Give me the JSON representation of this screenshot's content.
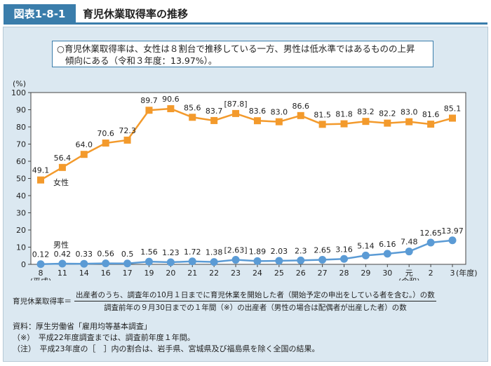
{
  "header": {
    "figure_number": "図表1-8-1",
    "title": "育児休業取得率の推移"
  },
  "summary": {
    "line1": "○育児休業取得率は、女性は８割台で推移している一方、男性は低水準ではあるものの上昇",
    "line2": "傾向にある（令和３年度：13.97%）。"
  },
  "chart_data": {
    "type": "line",
    "ylabel": "(%)",
    "ylim": [
      0,
      100
    ],
    "yticks": [
      0,
      10,
      20,
      30,
      40,
      50,
      60,
      70,
      80,
      90,
      100
    ],
    "categories": [
      "8",
      "11",
      "14",
      "16",
      "17",
      "19",
      "20",
      "21",
      "22",
      "23",
      "24",
      "25",
      "26",
      "27",
      "28",
      "29",
      "30",
      "元",
      "2",
      "3"
    ],
    "category_sublabels": {
      "8": "(平成)",
      "元": "(令和)"
    },
    "xlabel_suffix": "(年度)",
    "series": [
      {
        "name": "女性",
        "color": "#f39a2c",
        "marker": "square",
        "values": [
          49.1,
          56.4,
          64.0,
          70.6,
          72.3,
          89.7,
          90.6,
          85.6,
          83.7,
          87.8,
          83.6,
          83.0,
          86.6,
          81.5,
          81.8,
          83.2,
          82.2,
          83.0,
          81.6,
          85.1
        ],
        "labels": [
          "49.1",
          "56.4",
          "64.0",
          "70.6",
          "72.3",
          "89.7",
          "90.6",
          "85.6",
          "83.7",
          "[87.8]",
          "83.6",
          "83.0",
          "86.6",
          "81.5",
          "81.8",
          "83.2",
          "82.2",
          "83.0",
          "81.6",
          "85.1"
        ]
      },
      {
        "name": "男性",
        "color": "#5b9bd5",
        "marker": "circle",
        "values": [
          0.12,
          0.42,
          0.33,
          0.56,
          0.5,
          1.56,
          1.23,
          1.72,
          1.38,
          2.63,
          1.89,
          2.03,
          2.3,
          2.65,
          3.16,
          5.14,
          6.16,
          7.48,
          12.65,
          13.97
        ],
        "labels": [
          "0.12",
          "0.42",
          "0.33",
          "0.56",
          "0.5",
          "1.56",
          "1.23",
          "1.72",
          "1.38",
          "[2.63]",
          "1.89",
          "2.03",
          "2.3",
          "2.65",
          "3.16",
          "5.14",
          "6.16",
          "7.48",
          "12.65",
          "13.97"
        ]
      }
    ]
  },
  "formula": {
    "lhs": "育児休業取得率＝",
    "numerator": "出産者のうち、調査年の10月１日までに育児休業を開始した者（開始予定の申出をしている者を含む。）の数",
    "denominator": "調査前年の９月30日までの１年間（※）の出産者（男性の場合は配偶者が出産した者）の数"
  },
  "notes": [
    "資料：厚生労働省「雇用均等基本調査」",
    "（※）　平成22年度調査までは、調査前年度１年間。",
    "（注）　平成23年度の［　］内の割合は、岩手県、宮城県及び福島県を除く全国の結果。"
  ]
}
